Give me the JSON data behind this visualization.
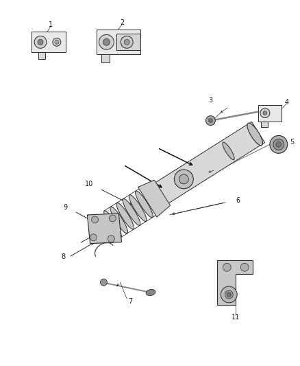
{
  "background_color": "#ffffff",
  "fig_width": 4.38,
  "fig_height": 5.33,
  "dpi": 100,
  "line_color": "#2a2a2a",
  "text_color": "#1a1a1a",
  "part_gray": "#c8c8c8",
  "part_dark": "#888888",
  "part_light": "#e8e8e8"
}
